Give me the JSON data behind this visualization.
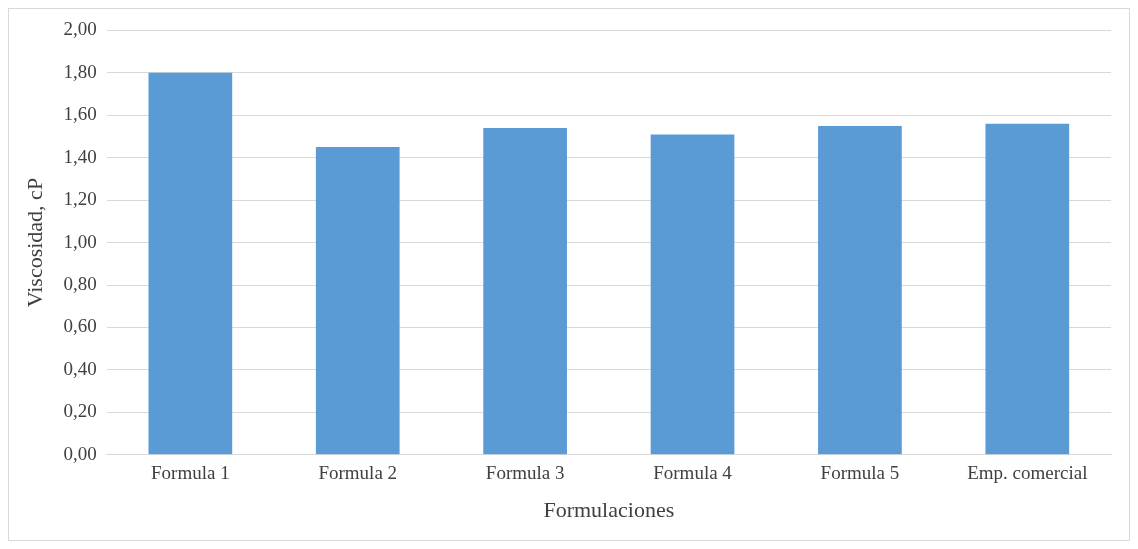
{
  "chart_data": {
    "type": "bar",
    "xlabel": "Formulaciones",
    "ylabel": "Viscosidad, cP",
    "categories": [
      "Formula 1",
      "Formula 2",
      "Formula 3",
      "Formula 4",
      "Formula 5",
      "Emp. comercial"
    ],
    "values": [
      1.8,
      1.45,
      1.54,
      1.51,
      1.55,
      1.56
    ],
    "color": "#5b9bd5",
    "ylim": [
      0,
      2
    ],
    "yticks": [
      {
        "value": 0,
        "label": "0,00"
      },
      {
        "value": 0.2,
        "label": "0,20"
      },
      {
        "value": 0.4,
        "label": "0,40"
      },
      {
        "value": 0.6,
        "label": "0,60"
      },
      {
        "value": 0.8,
        "label": "0,80"
      },
      {
        "value": 1,
        "label": "1,00"
      },
      {
        "value": 1.2,
        "label": "1,20"
      },
      {
        "value": 1.4,
        "label": "1,40"
      },
      {
        "value": 1.6,
        "label": "1,60"
      },
      {
        "value": 1.8,
        "label": "1,80"
      },
      {
        "value": 2,
        "label": "2,00"
      }
    ],
    "grid": "y",
    "legend": false
  }
}
